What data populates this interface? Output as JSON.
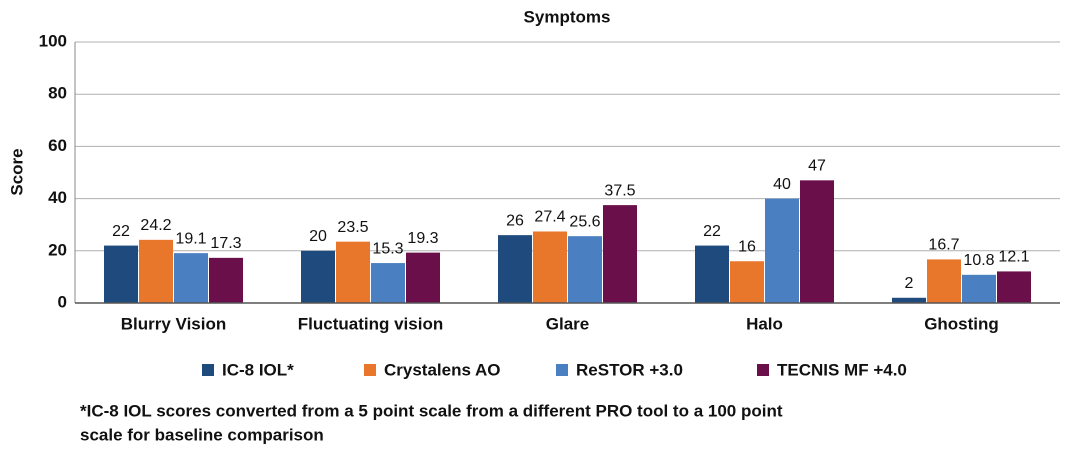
{
  "chart_data": {
    "type": "bar",
    "title": "Symptoms",
    "y_label": "Score",
    "categories": [
      "Blurry Vision",
      "Fluctuating vision",
      "Glare",
      "Halo",
      "Ghosting"
    ],
    "series": [
      {
        "name": "IC-8 IOL*",
        "color": "#1f4a7e",
        "values": [
          22,
          20,
          26,
          22,
          2
        ]
      },
      {
        "name": "Crystalens AO",
        "color": "#e8762b",
        "values": [
          24.2,
          23.5,
          27.4,
          16,
          16.7
        ]
      },
      {
        "name": "ReSTOR +3.0",
        "color": "#4a7fc1",
        "values": [
          19.1,
          15.3,
          25.6,
          40,
          10.8
        ]
      },
      {
        "name": "TECNIS MF +4.0",
        "color": "#6a0f4a",
        "values": [
          17.3,
          19.3,
          37.5,
          47,
          12.1
        ]
      }
    ],
    "ylim": [
      0,
      100
    ],
    "yticks": [
      0,
      20,
      40,
      60,
      80,
      100
    ],
    "grid": true,
    "legend": "bottom",
    "footnote": [
      "*IC-8 IOL scores converted from a 5 point scale from a different PRO tool to a 100 point",
      "scale for baseline comparison"
    ]
  }
}
